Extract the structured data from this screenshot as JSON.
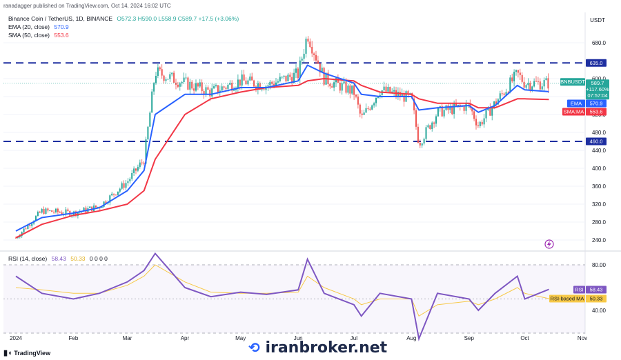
{
  "credit": "ranadagger published on TradingView.com, Oct 14, 2024 16:02 UTC",
  "symbol": {
    "title": "Binance Coin / TetherUS, 1D, BINANCE",
    "ohlc": "O572.3 H590.0 L558.9 C589.7 +17.5 (+3.06%)"
  },
  "indicators": {
    "ema_label": "EMA (20, close)",
    "ema_value": "570.9",
    "sma_label": "SMA (50, close)",
    "sma_value": "553.6",
    "rsi_label": "RSI (14, close)",
    "rsi_value": "58.43",
    "rsi_ma_value": "50.33",
    "rsi_extra": "0 0 0 0"
  },
  "price_axis": {
    "currency": "USDT",
    "ticks": [
      "680.0",
      "600.0",
      "560.0",
      "520.0",
      "480.0",
      "440.0",
      "400.0",
      "360.0",
      "320.0",
      "280.0",
      "240.0"
    ]
  },
  "rsi_axis": {
    "ticks": [
      "80.00",
      "40.00"
    ]
  },
  "badges": {
    "resistance": "635.0",
    "support": "460.0",
    "price_symbol": "BNBUSDT",
    "price": "589.7",
    "change": "+117.60%",
    "countdown": "07:57:04",
    "ema_tag": "EMA",
    "ema_val": "570.9",
    "sma_tag": "SMA:MA",
    "sma_val": "553.6",
    "rsi_tag": "RSI",
    "rsi_val": "58.43",
    "rsi_ma_tag": "RSI-based MA",
    "rsi_ma_val": "50.33"
  },
  "time_axis": [
    "2024",
    "Feb",
    "Mar",
    "Apr",
    "May",
    "Jun",
    "Jul",
    "Aug",
    "Sep",
    "Oct",
    "Nov"
  ],
  "watermark": "iranbroker.net",
  "footer_logo": "TradingView",
  "colors": {
    "up": "#26a69a",
    "down": "#ef5350",
    "ema": "#2962ff",
    "sma": "#f23645",
    "rsi": "#7e57c2",
    "rsi_ma": "#f7c948",
    "level": "#1e2fa0"
  },
  "chart_data": {
    "type": "line",
    "title": "Binance Coin / TetherUS, 1D, BINANCE",
    "xlabel": "",
    "ylabel": "USDT",
    "x": [
      "2024-01-01",
      "2024-01-15",
      "2024-02-01",
      "2024-02-15",
      "2024-03-01",
      "2024-03-10",
      "2024-03-16",
      "2024-04-01",
      "2024-04-15",
      "2024-05-01",
      "2024-05-15",
      "2024-06-01",
      "2024-06-06",
      "2024-06-15",
      "2024-07-01",
      "2024-07-05",
      "2024-07-15",
      "2024-08-01",
      "2024-08-05",
      "2024-08-15",
      "2024-09-01",
      "2024-09-06",
      "2024-09-15",
      "2024-09-27",
      "2024-10-01",
      "2024-10-14"
    ],
    "ylim": [
      220,
      720
    ],
    "series": [
      {
        "values": [
          245,
          305,
          300,
          315,
          370,
          420,
          615,
          590,
          570,
          595,
          585,
          610,
          700,
          600,
          570,
          510,
          575,
          555,
          455,
          525,
          540,
          495,
          545,
          610,
          590,
          589.7
        ]
      },
      {
        "name": "EMA",
        "values": [
          260,
          290,
          300,
          312,
          350,
          395,
          520,
          565,
          565,
          580,
          580,
          595,
          630,
          612,
          590,
          565,
          560,
          560,
          530,
          535,
          540,
          525,
          540,
          585,
          575,
          570.9
        ]
      },
      {
        "name": "SMA:MA",
        "values": [
          245,
          275,
          295,
          305,
          320,
          350,
          420,
          520,
          555,
          570,
          580,
          585,
          595,
          600,
          595,
          585,
          570,
          565,
          555,
          545,
          545,
          535,
          535,
          555,
          555,
          553.6
        ]
      }
    ],
    "levels": {
      "resistance": 635.0,
      "support": 460.0
    },
    "rsi": {
      "ylim": [
        10,
        100
      ],
      "rsi_values": [
        70,
        55,
        50,
        55,
        65,
        75,
        90,
        60,
        52,
        56,
        54,
        58,
        85,
        55,
        45,
        35,
        55,
        50,
        15,
        55,
        50,
        40,
        55,
        70,
        50,
        58.43
      ],
      "rsi_ma_values": [
        60,
        58,
        55,
        55,
        62,
        70,
        80,
        65,
        56,
        55,
        55,
        56,
        70,
        60,
        50,
        45,
        50,
        50,
        35,
        45,
        48,
        45,
        50,
        60,
        55,
        50.33
      ]
    }
  }
}
